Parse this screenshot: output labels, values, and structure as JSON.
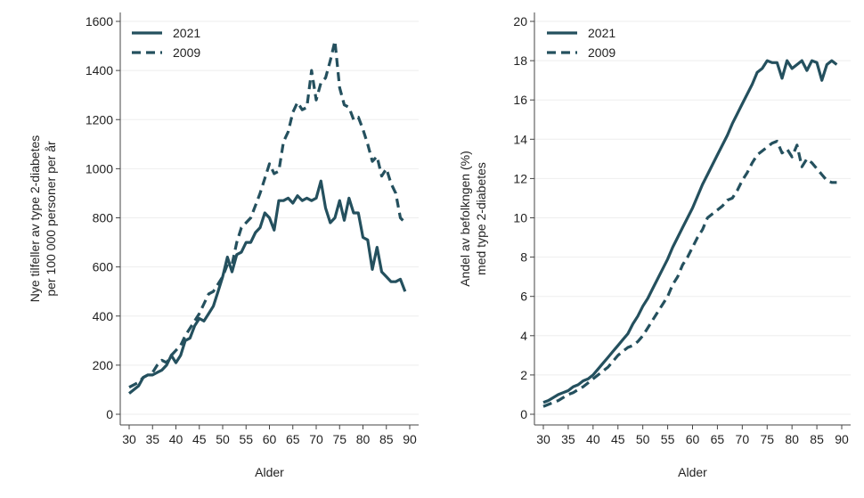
{
  "colors": {
    "series": "#24505e",
    "grid": "#eeeeee",
    "axis": "#444444"
  },
  "chart_data": [
    {
      "type": "line",
      "title": "",
      "xlabel": "Alder",
      "ylabel_lines": [
        "Nye tilfeller av type 2-diabetes",
        "per 100 000 personer per år"
      ],
      "xlim": [
        30,
        90
      ],
      "ylim": [
        0,
        1600
      ],
      "xticks": [
        30,
        35,
        40,
        45,
        50,
        55,
        60,
        65,
        70,
        75,
        80,
        85,
        90
      ],
      "yticks": [
        0,
        200,
        400,
        600,
        800,
        1000,
        1200,
        1400,
        1600
      ],
      "grid": "horizontal",
      "legend_position": "top-left",
      "x": [
        30,
        31,
        32,
        33,
        34,
        35,
        36,
        37,
        38,
        39,
        40,
        41,
        42,
        43,
        44,
        45,
        46,
        47,
        48,
        49,
        50,
        51,
        52,
        53,
        54,
        55,
        56,
        57,
        58,
        59,
        60,
        61,
        62,
        63,
        64,
        65,
        66,
        67,
        68,
        69,
        70,
        71,
        72,
        73,
        74,
        75,
        76,
        77,
        78,
        79,
        80,
        81,
        82,
        83,
        84,
        85,
        86,
        87,
        88,
        89
      ],
      "series": [
        {
          "name": "2021",
          "style": "solid",
          "values": [
            85,
            100,
            115,
            150,
            160,
            160,
            170,
            180,
            200,
            240,
            210,
            240,
            300,
            310,
            360,
            390,
            380,
            410,
            440,
            500,
            560,
            640,
            580,
            650,
            660,
            700,
            700,
            740,
            760,
            820,
            800,
            750,
            870,
            870,
            880,
            860,
            890,
            870,
            880,
            870,
            880,
            950,
            840,
            780,
            800,
            870,
            790,
            880,
            820,
            820,
            720,
            710,
            590,
            680,
            580,
            560,
            540,
            540,
            550,
            500
          ]
        },
        {
          "name": "2009",
          "style": "dashed",
          "values": [
            110,
            120,
            130,
            150,
            160,
            170,
            200,
            220,
            210,
            240,
            260,
            280,
            320,
            350,
            380,
            410,
            450,
            490,
            500,
            530,
            560,
            610,
            610,
            700,
            760,
            780,
            800,
            850,
            900,
            960,
            1020,
            980,
            990,
            1110,
            1150,
            1230,
            1270,
            1240,
            1250,
            1400,
            1280,
            1350,
            1370,
            1440,
            1520,
            1330,
            1260,
            1250,
            1200,
            1210,
            1160,
            1100,
            1030,
            1050,
            970,
            1000,
            940,
            900,
            800,
            780
          ]
        }
      ]
    },
    {
      "type": "line",
      "title": "",
      "xlabel": "Alder",
      "ylabel_lines": [
        "Andel av befolkngen (%)",
        "med type 2-diabetes"
      ],
      "xlim": [
        30,
        90
      ],
      "ylim": [
        0,
        20
      ],
      "xticks": [
        30,
        35,
        40,
        45,
        50,
        55,
        60,
        65,
        70,
        75,
        80,
        85,
        90
      ],
      "yticks": [
        0,
        2,
        4,
        6,
        8,
        10,
        12,
        14,
        16,
        18,
        20
      ],
      "grid": "horizontal",
      "legend_position": "top-left",
      "x": [
        30,
        31,
        32,
        33,
        34,
        35,
        36,
        37,
        38,
        39,
        40,
        41,
        42,
        43,
        44,
        45,
        46,
        47,
        48,
        49,
        50,
        51,
        52,
        53,
        54,
        55,
        56,
        57,
        58,
        59,
        60,
        61,
        62,
        63,
        64,
        65,
        66,
        67,
        68,
        69,
        70,
        71,
        72,
        73,
        74,
        75,
        76,
        77,
        78,
        79,
        80,
        81,
        82,
        83,
        84,
        85,
        86,
        87,
        88,
        89
      ],
      "series": [
        {
          "name": "2021",
          "style": "solid",
          "values": [
            0.6,
            0.7,
            0.85,
            1.0,
            1.1,
            1.2,
            1.4,
            1.5,
            1.7,
            1.8,
            2.0,
            2.3,
            2.6,
            2.9,
            3.2,
            3.5,
            3.8,
            4.1,
            4.6,
            5.0,
            5.5,
            5.9,
            6.4,
            6.9,
            7.4,
            7.9,
            8.5,
            9.0,
            9.5,
            10.0,
            10.5,
            11.1,
            11.7,
            12.2,
            12.7,
            13.2,
            13.7,
            14.2,
            14.8,
            15.3,
            15.8,
            16.3,
            16.8,
            17.4,
            17.6,
            18.0,
            17.9,
            17.9,
            17.1,
            18.0,
            17.6,
            17.8,
            18.0,
            17.5,
            18.0,
            17.9,
            17.0,
            17.8,
            18.0,
            17.8
          ]
        },
        {
          "name": "2009",
          "style": "dashed",
          "values": [
            0.4,
            0.5,
            0.6,
            0.7,
            0.85,
            1.0,
            1.1,
            1.25,
            1.4,
            1.6,
            1.8,
            2.0,
            2.2,
            2.4,
            2.7,
            3.0,
            3.2,
            3.4,
            3.5,
            3.7,
            4.0,
            4.4,
            4.8,
            5.2,
            5.6,
            6.0,
            6.6,
            7.0,
            7.6,
            8.0,
            8.5,
            9.0,
            9.4,
            10.0,
            10.2,
            10.4,
            10.6,
            10.9,
            11.0,
            11.4,
            11.9,
            12.3,
            12.8,
            13.2,
            13.4,
            13.6,
            13.8,
            13.9,
            13.3,
            13.5,
            13.1,
            13.7,
            12.6,
            13.0,
            12.8,
            12.5,
            12.2,
            11.9,
            11.8,
            11.8
          ]
        }
      ]
    }
  ]
}
